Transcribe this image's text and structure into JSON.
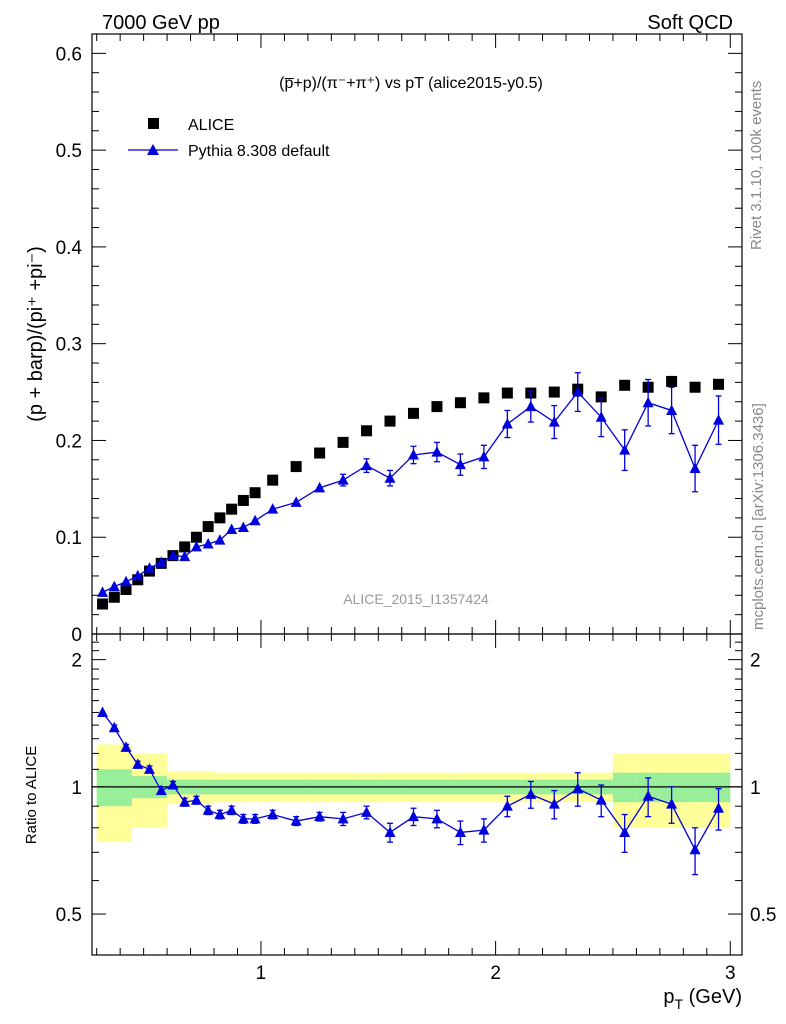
{
  "header": {
    "left": "7000 GeV pp",
    "right": "Soft QCD"
  },
  "side_labels": {
    "rivet": "Rivet 3.1.10,  100k events",
    "mcplots": "mcplots.cern.ch [arXiv:1306.3436]"
  },
  "chart_data": [
    {
      "type": "scatter",
      "title": "(p̅+p)/(π⁻+π⁺) vs pT (alice2015-y0.5)",
      "ylabel": "(p + barp)/(pi⁺ +pi⁻)",
      "watermark": "ALICE_2015_I1357424",
      "xlim": [
        0.28,
        3.05
      ],
      "ylim": [
        0,
        0.62
      ],
      "yticks": [
        "0",
        "0.1",
        "0.2",
        "0.3",
        "0.4",
        "0.5",
        "0.6"
      ],
      "legend": [
        {
          "label": "ALICE",
          "color": "#000000",
          "marker": "square"
        },
        {
          "label": "Pythia 8.308 default",
          "color": "#0000dd",
          "marker": "triangle"
        }
      ],
      "x": [
        0.325,
        0.375,
        0.425,
        0.475,
        0.525,
        0.575,
        0.625,
        0.675,
        0.725,
        0.775,
        0.825,
        0.875,
        0.925,
        0.975,
        1.05,
        1.15,
        1.25,
        1.35,
        1.45,
        1.55,
        1.65,
        1.75,
        1.85,
        1.95,
        2.05,
        2.15,
        2.25,
        2.35,
        2.45,
        2.55,
        2.65,
        2.75,
        2.85,
        2.95
      ],
      "series": [
        {
          "name": "ALICE",
          "values": [
            0.031,
            0.038,
            0.046,
            0.056,
            0.065,
            0.073,
            0.081,
            0.09,
            0.1,
            0.111,
            0.12,
            0.129,
            0.138,
            0.146,
            0.159,
            0.173,
            0.187,
            0.198,
            0.21,
            0.22,
            0.228,
            0.235,
            0.239,
            0.244,
            0.249,
            0.249,
            0.25,
            0.253,
            0.245,
            0.257,
            0.255,
            0.261,
            0.255,
            0.258
          ]
        },
        {
          "name": "Pythia 8.308 default",
          "values": [
            0.043,
            0.049,
            0.054,
            0.06,
            0.068,
            0.074,
            0.081,
            0.08,
            0.09,
            0.093,
            0.097,
            0.108,
            0.11,
            0.117,
            0.129,
            0.136,
            0.151,
            0.159,
            0.174,
            0.161,
            0.185,
            0.188,
            0.175,
            0.183,
            0.217,
            0.235,
            0.219,
            0.25,
            0.224,
            0.19,
            0.239,
            0.231,
            0.171,
            0.221
          ],
          "errors": [
            0.001,
            0.001,
            0.001,
            0.001,
            0.001,
            0.001,
            0.002,
            0.002,
            0.002,
            0.002,
            0.002,
            0.003,
            0.003,
            0.003,
            0.004,
            0.004,
            0.005,
            0.006,
            0.007,
            0.008,
            0.009,
            0.01,
            0.011,
            0.012,
            0.014,
            0.016,
            0.017,
            0.02,
            0.02,
            0.021,
            0.024,
            0.024,
            0.024,
            0.025
          ]
        }
      ]
    },
    {
      "type": "scatter",
      "ylabel": "Ratio to ALICE",
      "xlabel": "p_T (GeV)",
      "xlim": [
        0.28,
        3.05
      ],
      "ylim": [
        0.4,
        2.3
      ],
      "log_y": true,
      "yticks": [
        "0.5",
        "1",
        "2"
      ],
      "xticks": [
        "1",
        "2",
        "3"
      ],
      "reference": 1.0,
      "band_inner_color": "#99ee99",
      "band_outer_color": "#ffff99",
      "band_edges": [
        0.3,
        0.45,
        0.6,
        0.8,
        1.0,
        1.2,
        1.4,
        1.5,
        1.6,
        1.8,
        2.0,
        2.2,
        2.4,
        2.5,
        2.6,
        3.0
      ],
      "band_inner": [
        0.1,
        0.06,
        0.04,
        0.04,
        0.04,
        0.04,
        0.04,
        0.04,
        0.04,
        0.04,
        0.04,
        0.04,
        0.04,
        0.08,
        0.08
      ],
      "band_outer": [
        0.26,
        0.2,
        0.09,
        0.08,
        0.08,
        0.08,
        0.08,
        0.08,
        0.08,
        0.08,
        0.08,
        0.08,
        0.08,
        0.2,
        0.2
      ],
      "series": [
        {
          "name": "Pythia 8.308 default",
          "values": [
            1.5,
            1.38,
            1.24,
            1.13,
            1.1,
            0.98,
            1.01,
            0.92,
            0.93,
            0.88,
            0.86,
            0.88,
            0.84,
            0.84,
            0.86,
            0.83,
            0.85,
            0.84,
            0.87,
            0.78,
            0.85,
            0.84,
            0.78,
            0.79,
            0.9,
            0.96,
            0.91,
            0.99,
            0.93,
            0.78,
            0.95,
            0.91,
            0.71,
            0.89
          ],
          "errors": [
            0.02,
            0.02,
            0.02,
            0.02,
            0.02,
            0.02,
            0.02,
            0.02,
            0.02,
            0.02,
            0.02,
            0.02,
            0.02,
            0.02,
            0.02,
            0.02,
            0.02,
            0.03,
            0.03,
            0.04,
            0.04,
            0.04,
            0.05,
            0.05,
            0.05,
            0.07,
            0.07,
            0.09,
            0.08,
            0.08,
            0.1,
            0.09,
            0.09,
            0.1
          ]
        }
      ]
    }
  ]
}
